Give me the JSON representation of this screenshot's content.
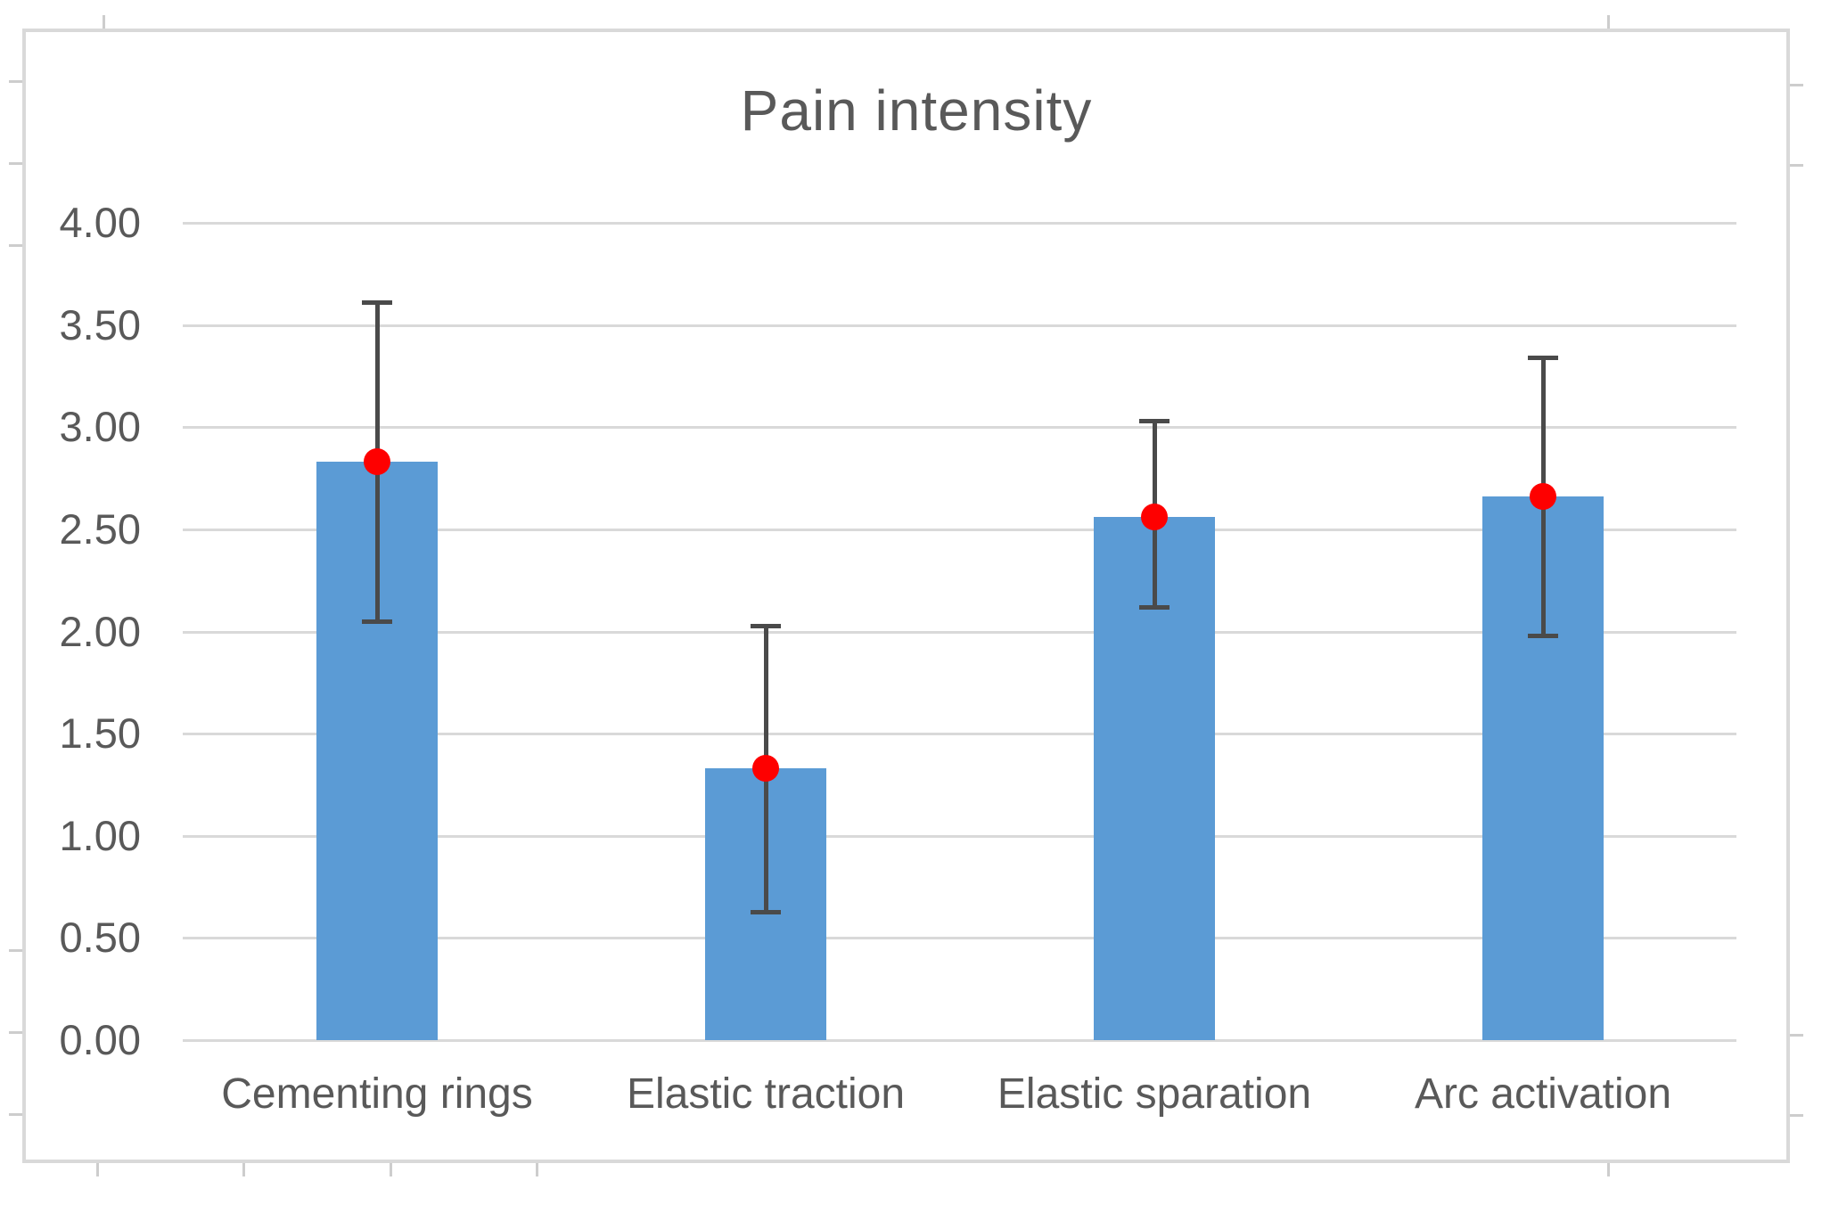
{
  "chart_data": {
    "type": "bar",
    "title": "Pain intensity",
    "categories": [
      "Cementing rings",
      "Elastic traction",
      "Elastic sparation",
      "Arc activation"
    ],
    "values": [
      2.83,
      1.33,
      2.56,
      2.66
    ],
    "mean_markers": [
      2.83,
      1.33,
      2.56,
      2.66
    ],
    "error_low": [
      2.05,
      0.63,
      2.12,
      1.98
    ],
    "error_high": [
      3.61,
      2.03,
      3.03,
      3.34
    ],
    "y_ticks": [
      {
        "label": "4.00",
        "value": 4.0
      },
      {
        "label": "3.50",
        "value": 3.5
      },
      {
        "label": "3.00",
        "value": 3.0
      },
      {
        "label": "2.50",
        "value": 2.5
      },
      {
        "label": "2.00",
        "value": 2.0
      },
      {
        "label": "1.50",
        "value": 1.5
      },
      {
        "label": "1.00",
        "value": 1.0
      },
      {
        "label": "0.50",
        "value": 0.5
      },
      {
        "label": "0.00",
        "value": 0.0
      }
    ],
    "ylim": [
      0,
      4.33
    ],
    "xlabel": "",
    "ylabel": "",
    "grid": "horizontal",
    "legend": "none",
    "colors": {
      "bar": "#5b9bd5",
      "mean_dot": "#fe0000",
      "error_bar": "#4a4a4a",
      "gridline": "#d9d9d9",
      "frame_border": "#d9d9d9",
      "text": "#595959",
      "background": "#ffffff"
    }
  }
}
